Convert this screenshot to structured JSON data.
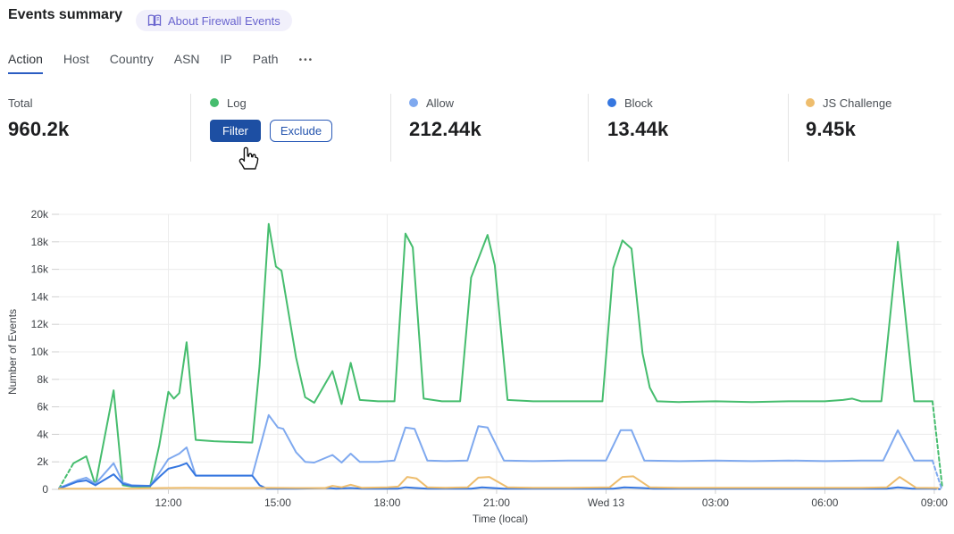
{
  "header": {
    "title": "Events summary",
    "about_label": "About Firewall Events"
  },
  "tabs": {
    "items": [
      {
        "label": "Action",
        "active": true
      },
      {
        "label": "Host",
        "active": false
      },
      {
        "label": "Country",
        "active": false
      },
      {
        "label": "ASN",
        "active": false
      },
      {
        "label": "IP",
        "active": false
      },
      {
        "label": "Path",
        "active": false
      }
    ],
    "more_label": "•••"
  },
  "stats": {
    "total": {
      "label": "Total",
      "value": "960.2k"
    },
    "log": {
      "label": "Log",
      "dot_color": "#46bd6e",
      "filter_label": "Filter",
      "exclude_label": "Exclude"
    },
    "allow": {
      "label": "Allow",
      "value": "212.44k",
      "dot_color": "#7fa9ef"
    },
    "block": {
      "label": "Block",
      "value": "13.44k",
      "dot_color": "#3677e0"
    },
    "js_challenge": {
      "label": "JS Challenge",
      "value": "9.45k",
      "dot_color": "#eebd6d"
    }
  },
  "colors": {
    "active_tab_underline": "#2b5dc2",
    "filter_button_bg": "#1d4fa3",
    "exclude_button_border": "#2b5bb8",
    "about_pill_bg": "#f1f0fb",
    "about_pill_text": "#6a65cf",
    "gridline": "#ececec",
    "axis_line": "#cfcfcf"
  },
  "chart_data": {
    "type": "line",
    "title": "",
    "xlabel": "Time (local)",
    "ylabel": "Number of Events",
    "x_unit": "hours since 09:00 local (Tue) through 09:00 (Wed 13)",
    "ylim": [
      0,
      20000
    ],
    "grid": true,
    "legend_position": "stats-row-above",
    "y_ticks": [
      {
        "v": 0,
        "label": "0"
      },
      {
        "v": 2000,
        "label": "2k"
      },
      {
        "v": 4000,
        "label": "4k"
      },
      {
        "v": 6000,
        "label": "6k"
      },
      {
        "v": 8000,
        "label": "8k"
      },
      {
        "v": 10000,
        "label": "10k"
      },
      {
        "v": 12000,
        "label": "12k"
      },
      {
        "v": 14000,
        "label": "14k"
      },
      {
        "v": 16000,
        "label": "16k"
      },
      {
        "v": 18000,
        "label": "18k"
      },
      {
        "v": 20000,
        "label": "20k"
      }
    ],
    "x_ticks": [
      {
        "t": 3,
        "label": "12:00"
      },
      {
        "t": 6,
        "label": "15:00"
      },
      {
        "t": 9,
        "label": "18:00"
      },
      {
        "t": 12,
        "label": "21:00"
      },
      {
        "t": 15,
        "label": "Wed 13"
      },
      {
        "t": 18,
        "label": "03:00"
      },
      {
        "t": 21,
        "label": "06:00"
      },
      {
        "t": 24,
        "label": "09:00"
      }
    ],
    "series": [
      {
        "name": "Log",
        "color": "#46bd6e",
        "dash_intro": [
          [
            0,
            0.05
          ],
          [
            0.4,
            1.9
          ]
        ],
        "points": [
          [
            0.4,
            1.9
          ],
          [
            0.75,
            2.4
          ],
          [
            1.0,
            0.3
          ],
          [
            1.5,
            7.2
          ],
          [
            1.75,
            0.3
          ],
          [
            2.0,
            0.2
          ],
          [
            2.5,
            0.2
          ],
          [
            2.75,
            3.2
          ],
          [
            3.0,
            7.1
          ],
          [
            3.15,
            6.6
          ],
          [
            3.3,
            7.0
          ],
          [
            3.5,
            10.7
          ],
          [
            3.75,
            3.6
          ],
          [
            4.25,
            3.5
          ],
          [
            4.75,
            3.45
          ],
          [
            5.3,
            3.4
          ],
          [
            5.5,
            9.0
          ],
          [
            5.75,
            19.3
          ],
          [
            5.95,
            16.2
          ],
          [
            6.1,
            15.9
          ],
          [
            6.5,
            9.6
          ],
          [
            6.75,
            6.7
          ],
          [
            7.0,
            6.3
          ],
          [
            7.5,
            8.6
          ],
          [
            7.75,
            6.2
          ],
          [
            8.0,
            9.2
          ],
          [
            8.25,
            6.5
          ],
          [
            8.75,
            6.4
          ],
          [
            9.2,
            6.4
          ],
          [
            9.5,
            18.6
          ],
          [
            9.7,
            17.6
          ],
          [
            10.0,
            6.6
          ],
          [
            10.5,
            6.4
          ],
          [
            11.0,
            6.4
          ],
          [
            11.3,
            15.4
          ],
          [
            11.75,
            18.5
          ],
          [
            11.95,
            16.3
          ],
          [
            12.3,
            6.5
          ],
          [
            13.0,
            6.4
          ],
          [
            14.0,
            6.4
          ],
          [
            14.9,
            6.4
          ],
          [
            15.2,
            16.1
          ],
          [
            15.45,
            18.1
          ],
          [
            15.7,
            17.5
          ],
          [
            16.0,
            9.9
          ],
          [
            16.2,
            7.4
          ],
          [
            16.4,
            6.4
          ],
          [
            17.0,
            6.35
          ],
          [
            18.0,
            6.4
          ],
          [
            19.0,
            6.35
          ],
          [
            20.0,
            6.4
          ],
          [
            21.0,
            6.4
          ],
          [
            21.5,
            6.5
          ],
          [
            21.75,
            6.6
          ],
          [
            22.0,
            6.4
          ],
          [
            22.55,
            6.4
          ],
          [
            23.0,
            18.0
          ],
          [
            23.45,
            6.4
          ],
          [
            23.95,
            6.4
          ]
        ],
        "dash_outro": [
          [
            23.95,
            6.4
          ],
          [
            24.22,
            0.15
          ]
        ]
      },
      {
        "name": "Allow",
        "color": "#7fa9ef",
        "dash_intro": [],
        "points": [
          [
            0,
            0.1
          ],
          [
            0.5,
            0.65
          ],
          [
            0.75,
            0.85
          ],
          [
            1.0,
            0.4
          ],
          [
            1.5,
            1.9
          ],
          [
            1.75,
            0.5
          ],
          [
            2.0,
            0.3
          ],
          [
            2.5,
            0.25
          ],
          [
            2.75,
            1.2
          ],
          [
            3.0,
            2.2
          ],
          [
            3.3,
            2.6
          ],
          [
            3.5,
            3.05
          ],
          [
            3.75,
            1.0
          ],
          [
            4.5,
            1.0
          ],
          [
            5.3,
            1.0
          ],
          [
            5.75,
            5.4
          ],
          [
            6.0,
            4.5
          ],
          [
            6.15,
            4.4
          ],
          [
            6.5,
            2.7
          ],
          [
            6.75,
            2.0
          ],
          [
            7.0,
            1.95
          ],
          [
            7.5,
            2.5
          ],
          [
            7.75,
            1.95
          ],
          [
            8.0,
            2.6
          ],
          [
            8.25,
            2.0
          ],
          [
            8.75,
            2.0
          ],
          [
            9.2,
            2.1
          ],
          [
            9.5,
            4.5
          ],
          [
            9.75,
            4.4
          ],
          [
            10.1,
            2.1
          ],
          [
            10.6,
            2.05
          ],
          [
            11.2,
            2.1
          ],
          [
            11.5,
            4.6
          ],
          [
            11.75,
            4.5
          ],
          [
            12.2,
            2.1
          ],
          [
            13.0,
            2.05
          ],
          [
            14.0,
            2.1
          ],
          [
            15.0,
            2.1
          ],
          [
            15.4,
            4.3
          ],
          [
            15.7,
            4.3
          ],
          [
            16.05,
            2.1
          ],
          [
            17.0,
            2.05
          ],
          [
            18.0,
            2.1
          ],
          [
            19.0,
            2.05
          ],
          [
            20.0,
            2.1
          ],
          [
            21.0,
            2.05
          ],
          [
            22.0,
            2.1
          ],
          [
            22.6,
            2.1
          ],
          [
            23.0,
            4.3
          ],
          [
            23.45,
            2.1
          ],
          [
            23.95,
            2.1
          ]
        ],
        "dash_outro": [
          [
            23.95,
            2.1
          ],
          [
            24.2,
            0.05
          ]
        ]
      },
      {
        "name": "Block",
        "color": "#3677e0",
        "dash_intro": [],
        "points": [
          [
            0,
            0.05
          ],
          [
            0.5,
            0.55
          ],
          [
            0.75,
            0.65
          ],
          [
            1.0,
            0.3
          ],
          [
            1.5,
            1.1
          ],
          [
            1.75,
            0.4
          ],
          [
            2.0,
            0.25
          ],
          [
            2.5,
            0.25
          ],
          [
            2.75,
            0.9
          ],
          [
            3.0,
            1.5
          ],
          [
            3.3,
            1.7
          ],
          [
            3.5,
            1.9
          ],
          [
            3.75,
            1.0
          ],
          [
            4.5,
            1.0
          ],
          [
            5.3,
            1.0
          ],
          [
            5.5,
            0.3
          ],
          [
            5.7,
            0.05
          ],
          [
            6.5,
            0.05
          ],
          [
            7.4,
            0.1
          ],
          [
            7.6,
            0.05
          ],
          [
            8.0,
            0.1
          ],
          [
            8.3,
            0.05
          ],
          [
            9.3,
            0.05
          ],
          [
            9.5,
            0.15
          ],
          [
            9.8,
            0.1
          ],
          [
            10.1,
            0.05
          ],
          [
            11.3,
            0.05
          ],
          [
            11.6,
            0.15
          ],
          [
            12.2,
            0.05
          ],
          [
            13.0,
            0.05
          ],
          [
            14.0,
            0.05
          ],
          [
            15.2,
            0.05
          ],
          [
            15.5,
            0.15
          ],
          [
            16.0,
            0.1
          ],
          [
            16.3,
            0.05
          ],
          [
            18.0,
            0.05
          ],
          [
            20.0,
            0.05
          ],
          [
            22.0,
            0.05
          ],
          [
            22.7,
            0.05
          ],
          [
            23.0,
            0.15
          ],
          [
            23.4,
            0.05
          ],
          [
            23.95,
            0.05
          ]
        ],
        "dash_outro": [
          [
            23.95,
            0.05
          ],
          [
            24.15,
            0.02
          ]
        ]
      },
      {
        "name": "JS Challenge",
        "color": "#eebd6d",
        "dash_intro": [],
        "points": [
          [
            0,
            0.05
          ],
          [
            1.0,
            0.05
          ],
          [
            2.0,
            0.05
          ],
          [
            2.75,
            0.1
          ],
          [
            3.5,
            0.12
          ],
          [
            4.5,
            0.1
          ],
          [
            5.3,
            0.1
          ],
          [
            5.75,
            0.12
          ],
          [
            6.5,
            0.1
          ],
          [
            7.3,
            0.1
          ],
          [
            7.5,
            0.25
          ],
          [
            7.75,
            0.15
          ],
          [
            8.0,
            0.33
          ],
          [
            8.3,
            0.12
          ],
          [
            9.0,
            0.15
          ],
          [
            9.3,
            0.2
          ],
          [
            9.55,
            0.9
          ],
          [
            9.8,
            0.8
          ],
          [
            10.1,
            0.15
          ],
          [
            10.6,
            0.12
          ],
          [
            11.2,
            0.15
          ],
          [
            11.5,
            0.85
          ],
          [
            11.8,
            0.9
          ],
          [
            12.3,
            0.15
          ],
          [
            13.0,
            0.12
          ],
          [
            14.0,
            0.12
          ],
          [
            15.1,
            0.15
          ],
          [
            15.45,
            0.9
          ],
          [
            15.75,
            0.95
          ],
          [
            16.2,
            0.15
          ],
          [
            17.0,
            0.12
          ],
          [
            18.0,
            0.12
          ],
          [
            19.0,
            0.12
          ],
          [
            20.0,
            0.12
          ],
          [
            21.0,
            0.12
          ],
          [
            22.0,
            0.12
          ],
          [
            22.7,
            0.15
          ],
          [
            23.05,
            0.9
          ],
          [
            23.5,
            0.12
          ],
          [
            24.1,
            0.1
          ]
        ],
        "dash_outro": []
      }
    ]
  }
}
